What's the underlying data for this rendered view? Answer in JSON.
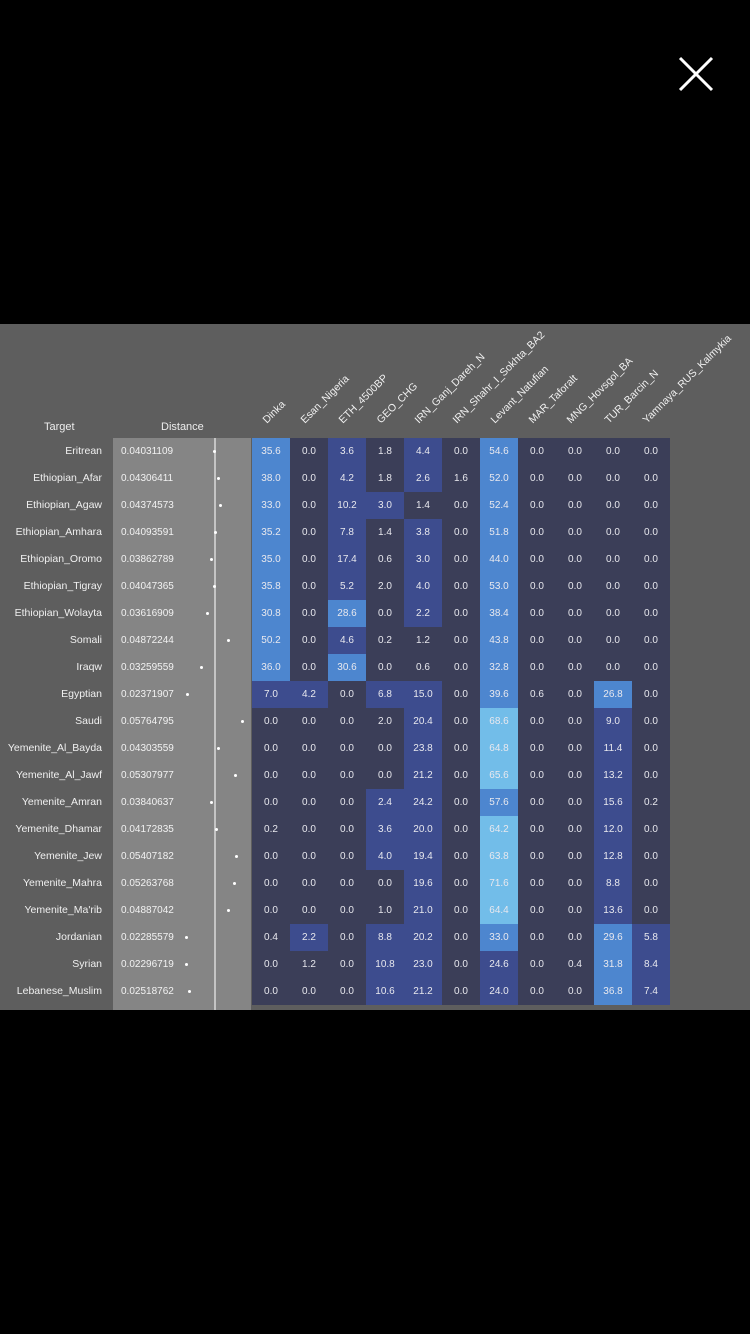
{
  "close_button": {
    "icon": "close-icon"
  },
  "headers": {
    "target": "Target",
    "distance": "Distance"
  },
  "columns": [
    "Dinka",
    "Esan_Nigeria",
    "ETH_4500BP",
    "GEO_CHG",
    "IRN_Ganj_Dareh_N",
    "IRN_Shahr_I_Sokhta_BA2",
    "Levant_Natufian",
    "MAR_Taforalt",
    "MNG_Hovsgol_BA",
    "TUR_Barcin_N",
    "Yamnaya_RUS_Kalmykia"
  ],
  "rows": [
    {
      "target": "Eritrean",
      "distance": "0.04031109",
      "values": [
        "35.6",
        "0.0",
        "3.6",
        "1.8",
        "4.4",
        "0.0",
        "54.6",
        "0.0",
        "0.0",
        "0.0",
        "0.0"
      ]
    },
    {
      "target": "Ethiopian_Afar",
      "distance": "0.04306411",
      "values": [
        "38.0",
        "0.0",
        "4.2",
        "1.8",
        "2.6",
        "1.6",
        "52.0",
        "0.0",
        "0.0",
        "0.0",
        "0.0"
      ]
    },
    {
      "target": "Ethiopian_Agaw",
      "distance": "0.04374573",
      "values": [
        "33.0",
        "0.0",
        "10.2",
        "3.0",
        "1.4",
        "0.0",
        "52.4",
        "0.0",
        "0.0",
        "0.0",
        "0.0"
      ]
    },
    {
      "target": "Ethiopian_Amhara",
      "distance": "0.04093591",
      "values": [
        "35.2",
        "0.0",
        "7.8",
        "1.4",
        "3.8",
        "0.0",
        "51.8",
        "0.0",
        "0.0",
        "0.0",
        "0.0"
      ]
    },
    {
      "target": "Ethiopian_Oromo",
      "distance": "0.03862789",
      "values": [
        "35.0",
        "0.0",
        "17.4",
        "0.6",
        "3.0",
        "0.0",
        "44.0",
        "0.0",
        "0.0",
        "0.0",
        "0.0"
      ]
    },
    {
      "target": "Ethiopian_Tigray",
      "distance": "0.04047365",
      "values": [
        "35.8",
        "0.0",
        "5.2",
        "2.0",
        "4.0",
        "0.0",
        "53.0",
        "0.0",
        "0.0",
        "0.0",
        "0.0"
      ]
    },
    {
      "target": "Ethiopian_Wolayta",
      "distance": "0.03616909",
      "values": [
        "30.8",
        "0.0",
        "28.6",
        "0.0",
        "2.2",
        "0.0",
        "38.4",
        "0.0",
        "0.0",
        "0.0",
        "0.0"
      ]
    },
    {
      "target": "Somali",
      "distance": "0.04872244",
      "values": [
        "50.2",
        "0.0",
        "4.6",
        "0.2",
        "1.2",
        "0.0",
        "43.8",
        "0.0",
        "0.0",
        "0.0",
        "0.0"
      ]
    },
    {
      "target": "Iraqw",
      "distance": "0.03259559",
      "values": [
        "36.0",
        "0.0",
        "30.6",
        "0.0",
        "0.6",
        "0.0",
        "32.8",
        "0.0",
        "0.0",
        "0.0",
        "0.0"
      ]
    },
    {
      "target": "Egyptian",
      "distance": "0.02371907",
      "values": [
        "7.0",
        "4.2",
        "0.0",
        "6.8",
        "15.0",
        "0.0",
        "39.6",
        "0.6",
        "0.0",
        "26.8",
        "0.0"
      ]
    },
    {
      "target": "Saudi",
      "distance": "0.05764795",
      "values": [
        "0.0",
        "0.0",
        "0.0",
        "2.0",
        "20.4",
        "0.0",
        "68.6",
        "0.0",
        "0.0",
        "9.0",
        "0.0"
      ]
    },
    {
      "target": "Yemenite_Al_Bayda",
      "distance": "0.04303559",
      "values": [
        "0.0",
        "0.0",
        "0.0",
        "0.0",
        "23.8",
        "0.0",
        "64.8",
        "0.0",
        "0.0",
        "11.4",
        "0.0"
      ]
    },
    {
      "target": "Yemenite_Al_Jawf",
      "distance": "0.05307977",
      "values": [
        "0.0",
        "0.0",
        "0.0",
        "0.0",
        "21.2",
        "0.0",
        "65.6",
        "0.0",
        "0.0",
        "13.2",
        "0.0"
      ]
    },
    {
      "target": "Yemenite_Amran",
      "distance": "0.03840637",
      "values": [
        "0.0",
        "0.0",
        "0.0",
        "2.4",
        "24.2",
        "0.0",
        "57.6",
        "0.0",
        "0.0",
        "15.6",
        "0.2"
      ]
    },
    {
      "target": "Yemenite_Dhamar",
      "distance": "0.04172835",
      "values": [
        "0.2",
        "0.0",
        "0.0",
        "3.6",
        "20.0",
        "0.0",
        "64.2",
        "0.0",
        "0.0",
        "12.0",
        "0.0"
      ]
    },
    {
      "target": "Yemenite_Jew",
      "distance": "0.05407182",
      "values": [
        "0.0",
        "0.0",
        "0.0",
        "4.0",
        "19.4",
        "0.0",
        "63.8",
        "0.0",
        "0.0",
        "12.8",
        "0.0"
      ]
    },
    {
      "target": "Yemenite_Mahra",
      "distance": "0.05263768",
      "values": [
        "0.0",
        "0.0",
        "0.0",
        "0.0",
        "19.6",
        "0.0",
        "71.6",
        "0.0",
        "0.0",
        "8.8",
        "0.0"
      ]
    },
    {
      "target": "Yemenite_Ma'rib",
      "distance": "0.04887042",
      "values": [
        "0.0",
        "0.0",
        "0.0",
        "1.0",
        "21.0",
        "0.0",
        "64.4",
        "0.0",
        "0.0",
        "13.6",
        "0.0"
      ]
    },
    {
      "target": "Jordanian",
      "distance": "0.02285579",
      "values": [
        "0.4",
        "2.2",
        "0.0",
        "8.8",
        "20.2",
        "0.0",
        "33.0",
        "0.0",
        "0.0",
        "29.6",
        "5.8"
      ]
    },
    {
      "target": "Syrian",
      "distance": "0.02296719",
      "values": [
        "0.0",
        "1.2",
        "0.0",
        "10.8",
        "23.0",
        "0.0",
        "24.6",
        "0.0",
        "0.4",
        "31.8",
        "8.4"
      ]
    },
    {
      "target": "Lebanese_Muslim",
      "distance": "0.02518762",
      "values": [
        "0.0",
        "0.0",
        "0.0",
        "10.6",
        "21.2",
        "0.0",
        "24.0",
        "0.0",
        "0.0",
        "36.8",
        "7.4"
      ]
    }
  ],
  "colors": {
    "page_bg": "#000000",
    "panel_bg": "#5e5e5e",
    "cell_base": "#3b3e58",
    "cell_mid": "#3d4c8e",
    "cell_high": "#4d86cf",
    "cell_max": "#72bde9"
  }
}
